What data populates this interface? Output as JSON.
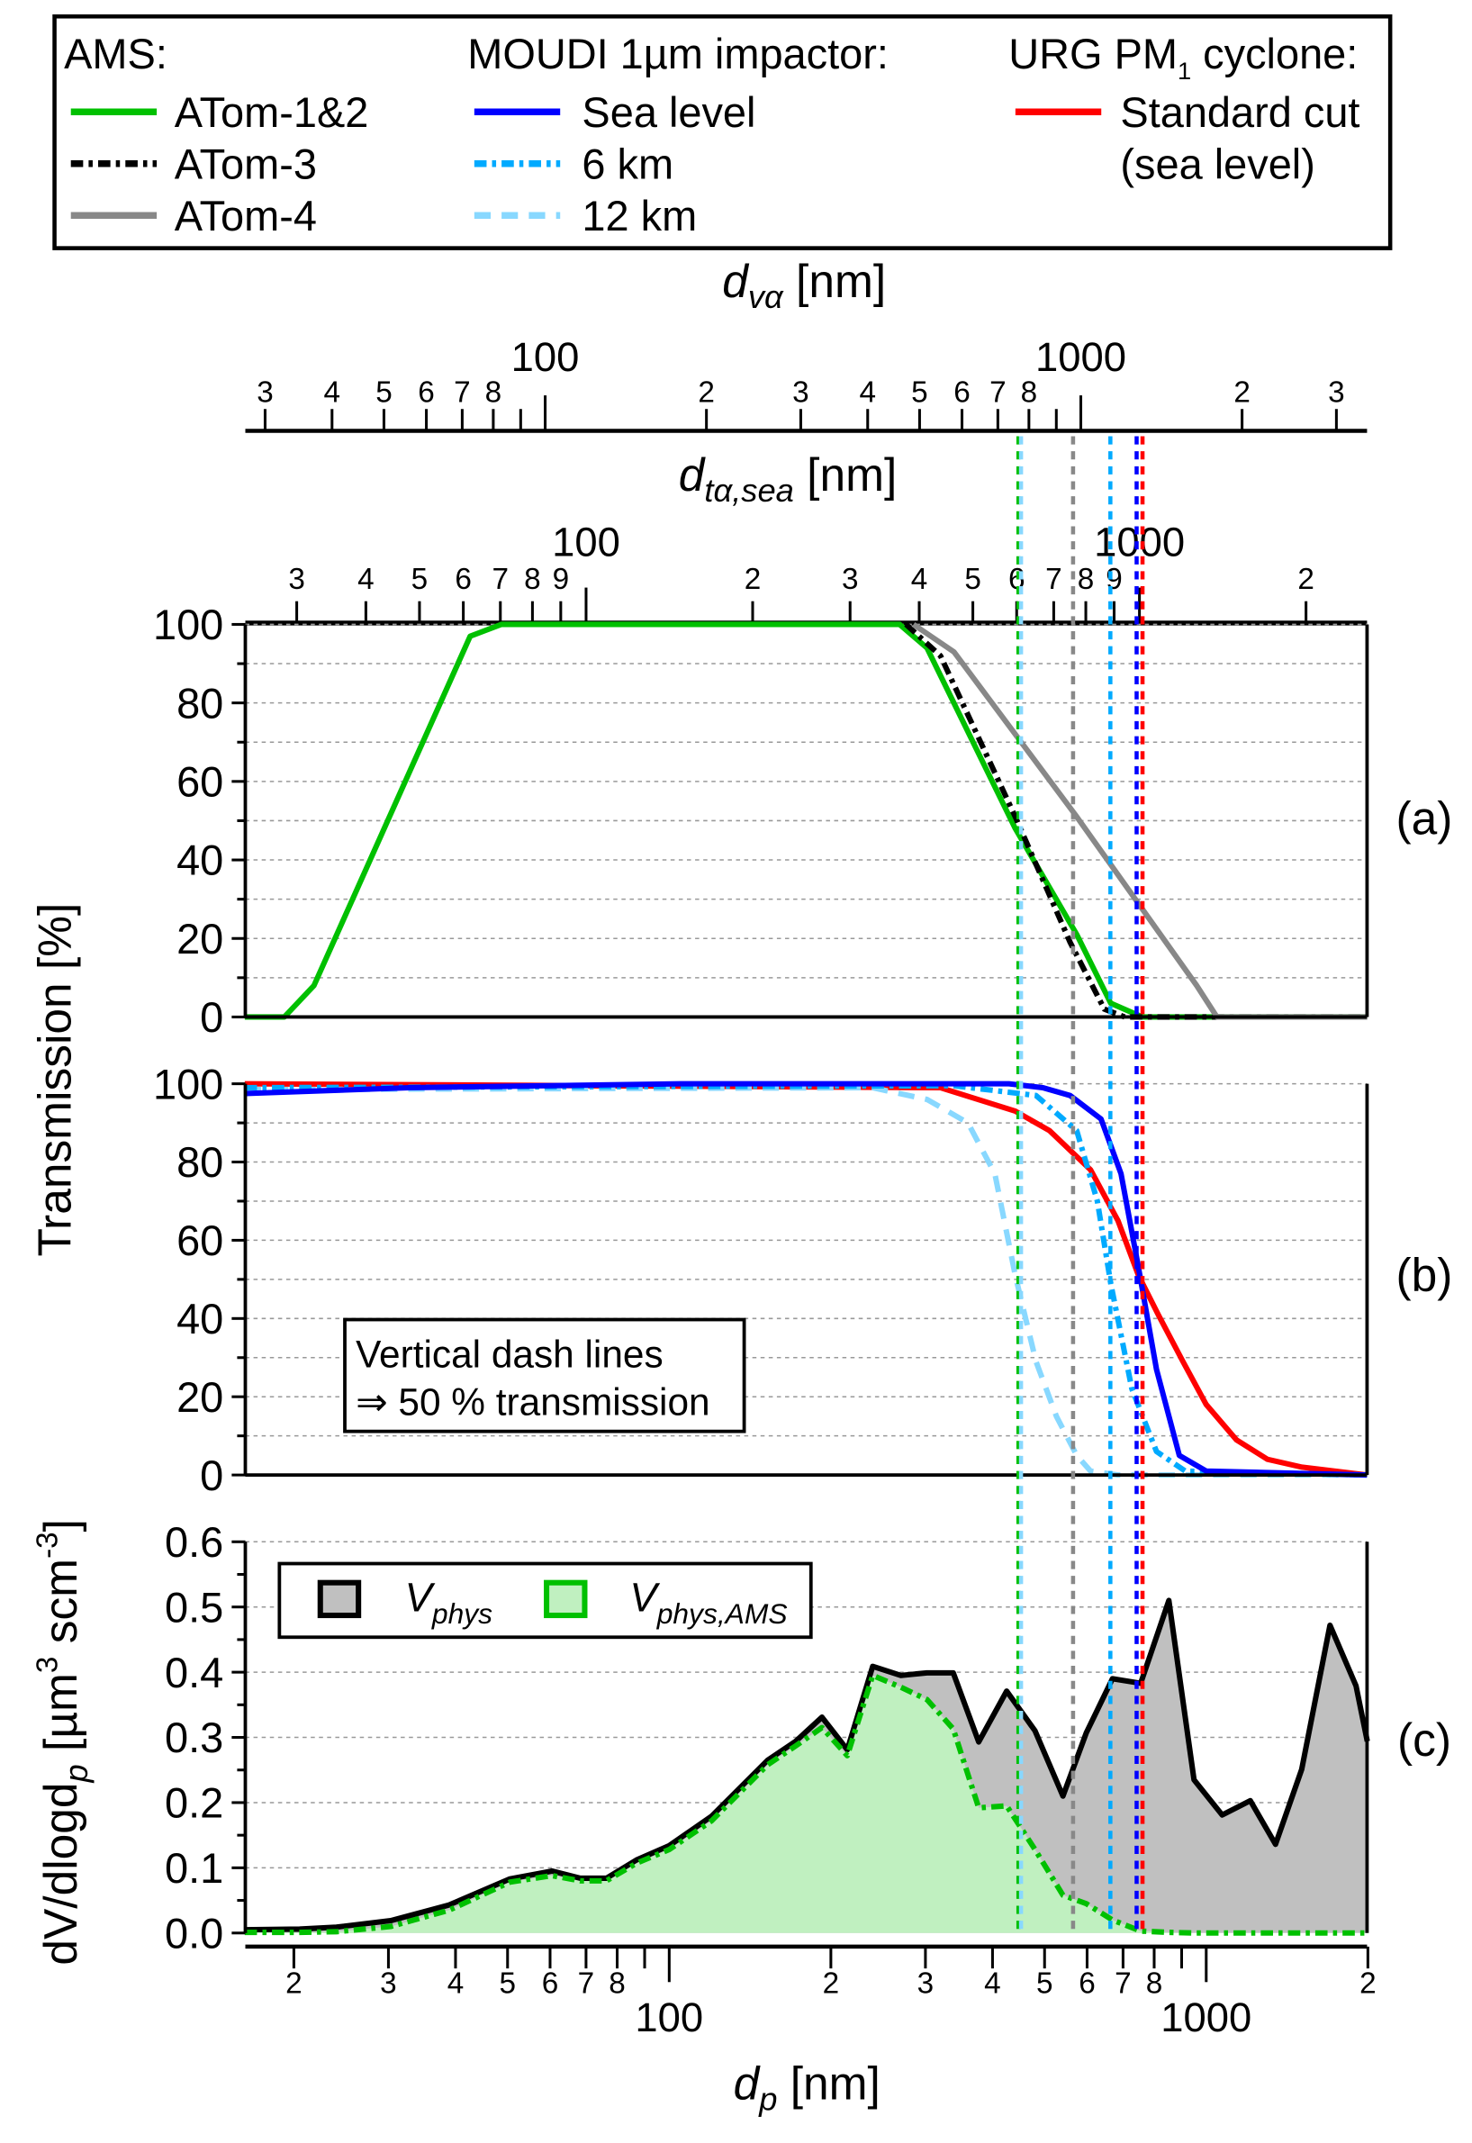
{
  "legend": {
    "ams_header": "AMS:",
    "moudi_header": "MOUDI 1µm impactor:",
    "urg_header_pre": "URG PM",
    "urg_header_sub": "1",
    "urg_header_post": " cyclone:",
    "ams": [
      {
        "label": "ATom-1&2",
        "color": "#00C000",
        "style": "solid"
      },
      {
        "label": "ATom-3",
        "color": "#000000",
        "style": "dashdot"
      },
      {
        "label": "ATom-4",
        "color": "#888888",
        "style": "solid"
      }
    ],
    "moudi": [
      {
        "label": "Sea level",
        "color": "#0000FF",
        "style": "solid"
      },
      {
        "label": "6 km",
        "color": "#00AAFF",
        "style": "dashdot"
      },
      {
        "label": "12 km",
        "color": "#88D8FF",
        "style": "dashed"
      }
    ],
    "urg": [
      {
        "label": "Standard cut",
        "label2": "(sea level)",
        "color": "#FF0000",
        "style": "solid"
      }
    ]
  },
  "chart_data": [
    {
      "type": "line",
      "panel": "(a)",
      "ylabel": "Transmission [%]",
      "ylim": [
        0,
        100
      ],
      "yticks": [
        "0",
        "20",
        "40",
        "60",
        "80",
        "100"
      ],
      "grid": true,
      "xlabel": "d_p [nm]",
      "xscale": "log",
      "xlim": [
        16.2,
        2000
      ],
      "series": [
        {
          "name": "ATom-1&2",
          "color": "#00C000",
          "style": "solid",
          "x": [
            16.2,
            19.2,
            21.8,
            42.6,
            48.7,
            268.5,
            302,
            441,
            574,
            664,
            760,
            1992
          ],
          "y": [
            0,
            0,
            8,
            97,
            100,
            100,
            94,
            48,
            21,
            3.5,
            0,
            0
          ]
        },
        {
          "name": "ATom-3",
          "color": "#000000",
          "style": "dashdot",
          "x": [
            276,
            320,
            441,
            558,
            646,
            705,
            1992
          ],
          "y": [
            100,
            92,
            51,
            19,
            2,
            0,
            0
          ]
        },
        {
          "name": "ATom-4",
          "color": "#888888",
          "style": "solid",
          "x": [
            285,
            339,
            574,
            960,
            1047,
            1992
          ],
          "y": [
            100,
            93,
            51,
            8,
            0,
            0
          ]
        }
      ]
    },
    {
      "type": "line",
      "panel": "(b)",
      "ylim": [
        0,
        100
      ],
      "yticks": [
        "0",
        "20",
        "40",
        "60",
        "80",
        "100"
      ],
      "grid": true,
      "xscale": "log",
      "xlim": [
        16.2,
        2000
      ],
      "annotation": [
        "Vertical dash lines",
        "⇒ 50 % transmission"
      ],
      "series": [
        {
          "name": "Standard cut (sea level)",
          "color": "#FF0000",
          "style": "solid",
          "x": [
            16.2,
            320,
            441,
            511,
            609,
            685,
            748,
            814,
            905,
            1000,
            1138,
            1300,
            1508,
            1992
          ],
          "y": [
            100,
            99,
            93,
            88,
            78,
            65,
            51,
            41,
            29,
            18,
            9,
            4,
            2,
            0
          ]
        },
        {
          "name": "12 km",
          "color": "#88D8FF",
          "style": "dashed",
          "x": [
            16.2,
            239,
            302,
            360,
            404,
            441,
            482,
            526,
            574,
            609,
            685,
            1992
          ],
          "y": [
            98.5,
            99,
            96,
            90,
            77,
            51,
            29,
            15,
            5,
            1,
            0,
            0
          ]
        },
        {
          "name": "6 km",
          "color": "#00AAFF",
          "style": "dashdot",
          "x": [
            16.2,
            339,
            482,
            574,
            627,
            664,
            727,
            808,
            914,
            1992
          ],
          "y": [
            99,
            99.5,
            97,
            88,
            70,
            49,
            22,
            6,
            1,
            0
          ]
        },
        {
          "name": "Sea level",
          "color": "#0000FF",
          "style": "solid",
          "x": [
            16.2,
            32.8,
            105,
            429,
            496,
            558,
            637,
            694,
            748,
            808,
            891,
            1000,
            1992
          ],
          "y": [
            97.5,
            99,
            100,
            100,
            99,
            97,
            91,
            77,
            53,
            27,
            5,
            1,
            0
          ]
        }
      ]
    },
    {
      "type": "area",
      "panel": "(c)",
      "ylabel_parts": [
        "dV/dlogd",
        "p",
        " [µm",
        "3",
        " scm",
        "-3",
        "]"
      ],
      "ylim": [
        0,
        0.6
      ],
      "yticks": [
        "0.0",
        "0.1",
        "0.2",
        "0.3",
        "0.4",
        "0.5",
        "0.6"
      ],
      "grid": true,
      "xscale": "log",
      "xlim": [
        16.2,
        2000
      ],
      "legend_entries": [
        {
          "main": "V",
          "sub": "phys",
          "color": "#C0C0C0",
          "edge": "#000000"
        },
        {
          "main": "V",
          "sub": "phys,AMS",
          "color": "#C0F0C0",
          "edge": "#00C000"
        }
      ],
      "series": [
        {
          "name": "V_phys",
          "fill": "#C0C0C0",
          "color": "#000000",
          "style": "solid",
          "x": [
            16.2,
            20.5,
            24,
            30.3,
            38.9,
            50.5,
            60.5,
            68.3,
            76.4,
            86.9,
            100,
            119.9,
            152.5,
            172,
            192.5,
            214.6,
            239.3,
            270,
            302,
            338,
            377,
            425,
            480,
            541,
            598,
            669,
            755,
            852,
            949,
            1071,
            1208,
            1346,
            1506,
            1700,
            1901,
            1995
          ],
          "y": [
            0.005,
            0.006,
            0.009,
            0.019,
            0.043,
            0.083,
            0.095,
            0.084,
            0.084,
            0.112,
            0.134,
            0.179,
            0.265,
            0.294,
            0.331,
            0.281,
            0.409,
            0.395,
            0.399,
            0.399,
            0.293,
            0.371,
            0.31,
            0.21,
            0.307,
            0.39,
            0.383,
            0.51,
            0.235,
            0.181,
            0.203,
            0.136,
            0.251,
            0.472,
            0.379,
            0.294
          ]
        },
        {
          "name": "V_phys,AMS",
          "fill": "#C0F0C0",
          "color": "#00C000",
          "style": "dashdot",
          "x": [
            16.2,
            20.5,
            24,
            30.3,
            38.9,
            50.5,
            60.5,
            68.3,
            76.4,
            86.9,
            100,
            119.9,
            152.5,
            172,
            192.5,
            214.6,
            239.3,
            270,
            302,
            338,
            377,
            425,
            480,
            541,
            598,
            669,
            755,
            852,
            949,
            1071,
            1208,
            1346,
            1506,
            1700,
            1901,
            1995
          ],
          "y": [
            0.001,
            0.001,
            0.002,
            0.01,
            0.035,
            0.078,
            0.088,
            0.08,
            0.08,
            0.107,
            0.128,
            0.172,
            0.258,
            0.287,
            0.315,
            0.272,
            0.395,
            0.377,
            0.358,
            0.313,
            0.192,
            0.195,
            0.128,
            0.058,
            0.045,
            0.02,
            0.003,
            0.001,
            0.0,
            0.0,
            0.0,
            0.0,
            0.0,
            0.0,
            0.0,
            0.0
          ]
        }
      ]
    }
  ],
  "shared_ylabel": "Transmission [%]",
  "vertical_lines": [
    {
      "dp": 447,
      "color": "#00C000",
      "meaning": "ATom-1&2 50%"
    },
    {
      "dp": 452,
      "color": "#88D8FF",
      "meaning": "12 km 50%"
    },
    {
      "dp": 565,
      "color": "#888888",
      "meaning": "ATom-4 50%"
    },
    {
      "dp": 663,
      "color": "#00AAFF",
      "meaning": "6 km 50%"
    },
    {
      "dp": 742,
      "color": "#0000FF",
      "meaning": "Sea level 50%"
    },
    {
      "dp": 761,
      "color": "#FF0000",
      "meaning": "Standard cut 50%"
    }
  ],
  "axes": {
    "dva": {
      "label_main": "d",
      "label_sub": "vα",
      "label_unit": " [nm]",
      "major": [
        {
          "v": 100,
          "t": "100"
        },
        {
          "v": 1000,
          "t": "1000"
        }
      ],
      "minor": [
        {
          "v": 30,
          "t": "3"
        },
        {
          "v": 40,
          "t": "4"
        },
        {
          "v": 50,
          "t": "5"
        },
        {
          "v": 60,
          "t": "6"
        },
        {
          "v": 70,
          "t": "7"
        },
        {
          "v": 80,
          "t": "8"
        },
        {
          "v": 90,
          "t": ""
        },
        {
          "v": 200,
          "t": "2"
        },
        {
          "v": 300,
          "t": "3"
        },
        {
          "v": 400,
          "t": "4"
        },
        {
          "v": 500,
          "t": "5"
        },
        {
          "v": 600,
          "t": "6"
        },
        {
          "v": 700,
          "t": "7"
        },
        {
          "v": 800,
          "t": "8"
        },
        {
          "v": 900,
          "t": ""
        },
        {
          "v": 2000,
          "t": "2"
        },
        {
          "v": 3000,
          "t": "3"
        }
      ]
    },
    "dta": {
      "label_main": "d",
      "label_sub": "tα,sea",
      "label_unit": " [nm]",
      "major": [
        {
          "v": 100,
          "t": "100"
        },
        {
          "v": 1000,
          "t": "1000"
        }
      ],
      "minor": [
        {
          "v": 30,
          "t": "3"
        },
        {
          "v": 40,
          "t": "4"
        },
        {
          "v": 50,
          "t": "5"
        },
        {
          "v": 60,
          "t": "6"
        },
        {
          "v": 70,
          "t": "7"
        },
        {
          "v": 80,
          "t": "8"
        },
        {
          "v": 90,
          "t": "9"
        },
        {
          "v": 200,
          "t": "2"
        },
        {
          "v": 300,
          "t": "3"
        },
        {
          "v": 400,
          "t": "4"
        },
        {
          "v": 500,
          "t": "5"
        },
        {
          "v": 600,
          "t": "6"
        },
        {
          "v": 700,
          "t": "7"
        },
        {
          "v": 800,
          "t": "8"
        },
        {
          "v": 900,
          "t": "9"
        },
        {
          "v": 2000,
          "t": "2"
        }
      ]
    },
    "dp": {
      "label_main": "d",
      "label_sub": "p",
      "label_unit": " [nm]",
      "major": [
        {
          "v": 100,
          "t": "100"
        },
        {
          "v": 1000,
          "t": "1000"
        }
      ],
      "minor": [
        {
          "v": 20,
          "t": "2"
        },
        {
          "v": 30,
          "t": "3"
        },
        {
          "v": 40,
          "t": "4"
        },
        {
          "v": 50,
          "t": "5"
        },
        {
          "v": 60,
          "t": "6"
        },
        {
          "v": 70,
          "t": "7"
        },
        {
          "v": 80,
          "t": "8"
        },
        {
          "v": 90,
          "t": ""
        },
        {
          "v": 200,
          "t": "2"
        },
        {
          "v": 300,
          "t": "3"
        },
        {
          "v": 400,
          "t": "4"
        },
        {
          "v": 500,
          "t": "5"
        },
        {
          "v": 600,
          "t": "6"
        },
        {
          "v": 700,
          "t": "7"
        },
        {
          "v": 800,
          "t": "8"
        },
        {
          "v": 900,
          "t": ""
        },
        {
          "v": 2000,
          "t": "2"
        }
      ]
    }
  }
}
